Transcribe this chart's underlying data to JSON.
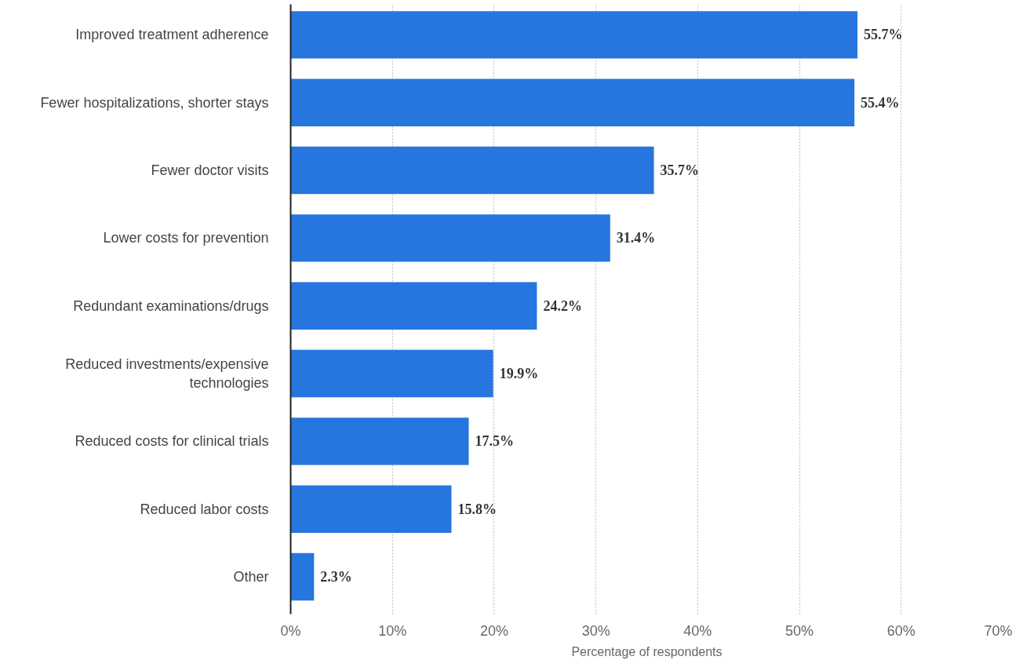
{
  "chart_data": {
    "type": "bar",
    "orientation": "horizontal",
    "xlabel": "Percentage of respondents",
    "categories": [
      "Improved treatment adherence",
      "Fewer hospitalizations, shorter stays",
      "Fewer doctor visits",
      "Lower costs for prevention",
      "Redundant examinations/drugs",
      "Reduced investments/expensive technologies",
      "Reduced costs for clinical trials",
      "Reduced labor costs",
      "Other"
    ],
    "values": [
      55.7,
      55.4,
      35.7,
      31.4,
      24.2,
      19.9,
      17.5,
      15.8,
      2.3
    ],
    "value_labels": [
      "55.7%",
      "55.4%",
      "35.7%",
      "31.4%",
      "24.2%",
      "19.9%",
      "17.5%",
      "15.8%",
      "2.3%"
    ],
    "color": "#2775de",
    "xlim": [
      0,
      70
    ],
    "xticks": [
      {
        "value": 0,
        "label": "0%"
      },
      {
        "value": 10,
        "label": "10%"
      },
      {
        "value": 20,
        "label": "20%"
      },
      {
        "value": 30,
        "label": "30%"
      },
      {
        "value": 40,
        "label": "40%"
      },
      {
        "value": 50,
        "label": "50%"
      },
      {
        "value": 60,
        "label": "60%"
      },
      {
        "value": 70,
        "label": "70%"
      }
    ],
    "grid": "x"
  }
}
